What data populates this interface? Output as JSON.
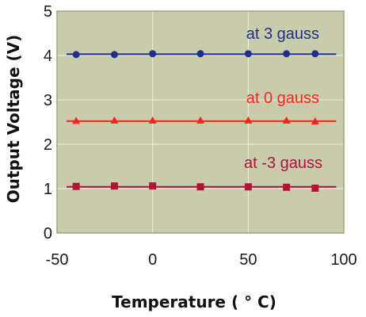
{
  "chart_data": {
    "type": "line",
    "xlabel": "Temperature   ( ° C)",
    "ylabel": "Output  Voltage  (V)",
    "xlim": [
      -50,
      100
    ],
    "ylim": [
      0,
      5
    ],
    "xticks": [
      "-50",
      "0",
      "50",
      "100"
    ],
    "yticks": [
      "0",
      "1",
      "2",
      "3",
      "4",
      "5"
    ],
    "grid": true,
    "background_color": "#c8ccaa",
    "grid_color": "#eef0e0",
    "border_color": "#a0a67a",
    "series": [
      {
        "name": "at 3 gauss",
        "marker": "circle",
        "color": "#1f2f8c",
        "x": [
          -40,
          -20,
          0,
          25,
          50,
          70,
          85
        ],
        "y": [
          4.02,
          4.02,
          4.04,
          4.04,
          4.04,
          4.04,
          4.04
        ],
        "line_x": [
          -45,
          96
        ],
        "line_y": [
          4.03,
          4.03
        ]
      },
      {
        "name": "at 0 gauss",
        "marker": "triangle",
        "color": "#ff2222",
        "x": [
          -40,
          -20,
          0,
          25,
          50,
          70,
          85
        ],
        "y": [
          2.52,
          2.53,
          2.53,
          2.53,
          2.53,
          2.53,
          2.51
        ],
        "line_x": [
          -45,
          96
        ],
        "line_y": [
          2.52,
          2.52
        ]
      },
      {
        "name": "at -3 gauss",
        "marker": "square",
        "color": "#b3103a",
        "x": [
          -40,
          -20,
          0,
          25,
          50,
          70,
          85
        ],
        "y": [
          1.05,
          1.06,
          1.06,
          1.04,
          1.04,
          1.03,
          1.01
        ],
        "line_x": [
          -45,
          96
        ],
        "line_y": [
          1.04,
          1.04
        ]
      }
    ]
  }
}
